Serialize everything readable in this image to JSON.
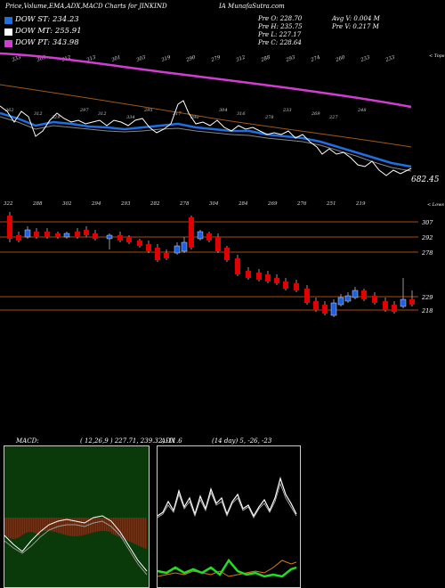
{
  "header": {
    "title_left": "Price,Volume,EMA,ADX,MACD Charts for JINKIND",
    "title_right": "IA MunafaSutra.com",
    "stats": {
      "open": "Pre   O: 228.70",
      "high": "Pre   H: 235.75",
      "low": "Pre   L: 227.17",
      "close": "Pre   C: 228.64",
      "avg_volume": "Avg V: 0.004   M",
      "prev_volume": "Pre   V: 0.217 M"
    }
  },
  "legend": [
    {
      "label": "DOW ST: 234.23",
      "color": "#1f6fe0"
    },
    {
      "label": "DOW MT: 255.91",
      "color": "#ffffff"
    },
    {
      "label": "DOW PT: 343.98",
      "color": "#d23cd2"
    }
  ],
  "colors": {
    "ema_long": "#d23cd2",
    "ema_mid": "#a05a18",
    "ema_short": "#1f6fe0",
    "price_line": "#ffffff",
    "up_candle": "#1f5fe0",
    "down_candle": "#e00000",
    "level_line": "#a84a10",
    "macd_bg": "#0a3a0a",
    "macd_bar": "#e00000",
    "adx_green": "#22dd22",
    "adx_orange": "#e07a10"
  },
  "ema_panel": {
    "top_labels": [
      "333",
      "303",
      "312",
      "313",
      "301",
      "303",
      "319",
      "290",
      "279",
      "312",
      "288",
      "293",
      "274",
      "260",
      "233",
      "233"
    ],
    "mid_labels": [
      "362",
      "312",
      "329",
      "297",
      "312",
      "334",
      "295",
      "317",
      "290",
      "304",
      "316",
      "278",
      "233",
      "269",
      "227",
      "248"
    ],
    "end_value": "682.45",
    "side_label": "< Tops"
  },
  "candle_panel": {
    "top_labels": [
      "322",
      "288",
      "302",
      "294",
      "293",
      "282",
      "278",
      "304",
      "284",
      "269",
      "276",
      "251",
      "219"
    ],
    "levels": [
      "307",
      "292",
      "278",
      "229",
      "218"
    ],
    "side_label": "< Lows"
  },
  "macd_panel": {
    "label": "MACD:",
    "params": "( 12,26,9 ) 227.71,  239.32,  -11.6",
    "adx_label": "ADX",
    "adx_params": "(14  day) 5,  -26,  -23"
  },
  "chart_data": [
    {
      "type": "line",
      "title": "",
      "series": [
        {
          "name": "DOW PT: 343.98"
        },
        {
          "name": "DOW MT: 255.91"
        },
        {
          "name": "DOW ST: 234.23"
        }
      ],
      "last_value": 682.45
    },
    {
      "type": "candlestick",
      "levels": [
        307,
        292,
        278,
        229,
        218
      ],
      "last_candle": {
        "open": 228.7,
        "high": 235.75,
        "low": 227.17,
        "close": 228.64
      }
    },
    {
      "type": "bar",
      "title": "MACD",
      "params": [
        12,
        26,
        9
      ],
      "values": {
        "macd": 227.71,
        "signal": 239.32,
        "histogram": -11.6
      }
    },
    {
      "type": "line",
      "title": "ADX",
      "period_days": 14,
      "values": {
        "adx": 5,
        "plus_di": -26,
        "minus_di": -23
      }
    }
  ]
}
